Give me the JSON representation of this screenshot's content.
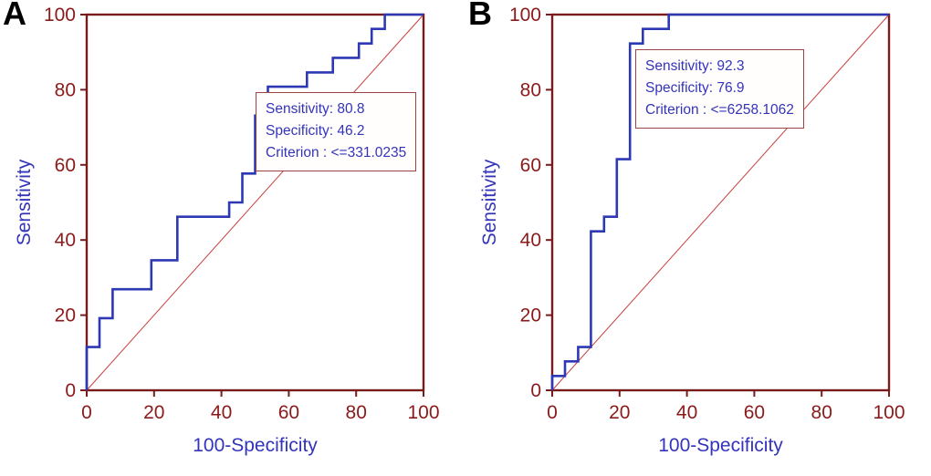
{
  "figure": {
    "background": "#ffffff"
  },
  "colors": {
    "curve": "#2d38b5",
    "diagonal": "#c84040",
    "frame": "#7a1b1b",
    "tick_label": "#8b1a1a",
    "axis_title": "#3434bb",
    "annotation_border": "#9c4343",
    "annotation_text": "#3434bb",
    "panel_label": "#000000"
  },
  "chart_data": [
    {
      "type": "line",
      "panel_label": "A",
      "title": "",
      "xlabel": "100-Specificity",
      "ylabel": "Sensitivity",
      "xlim": [
        0,
        100
      ],
      "ylim": [
        0,
        100
      ],
      "xticks": [
        0,
        20,
        40,
        60,
        80,
        100
      ],
      "yticks": [
        0,
        20,
        40,
        60,
        80,
        100
      ],
      "grid": false,
      "legend": "none",
      "series": [
        {
          "name": "ROC curve",
          "style": "step",
          "points": [
            [
              0,
              0
            ],
            [
              0,
              11.5
            ],
            [
              3.8,
              11.5
            ],
            [
              3.8,
              19.2
            ],
            [
              7.7,
              19.2
            ],
            [
              7.7,
              26.9
            ],
            [
              19.2,
              26.9
            ],
            [
              19.2,
              34.6
            ],
            [
              26.9,
              34.6
            ],
            [
              26.9,
              46.2
            ],
            [
              42.3,
              46.2
            ],
            [
              42.3,
              50
            ],
            [
              46.2,
              50
            ],
            [
              46.2,
              57.7
            ],
            [
              50,
              57.7
            ],
            [
              50,
              73.1
            ],
            [
              53.8,
              73.1
            ],
            [
              53.8,
              80.8
            ],
            [
              65.4,
              80.8
            ],
            [
              65.4,
              84.6
            ],
            [
              73.1,
              84.6
            ],
            [
              73.1,
              88.5
            ],
            [
              80.8,
              88.5
            ],
            [
              80.8,
              92.3
            ],
            [
              84.6,
              92.3
            ],
            [
              84.6,
              96.2
            ],
            [
              88.5,
              96.2
            ],
            [
              88.5,
              100
            ],
            [
              100,
              100
            ]
          ]
        },
        {
          "name": "Reference diagonal",
          "style": "straight",
          "points": [
            [
              0,
              0
            ],
            [
              100,
              100
            ]
          ]
        }
      ],
      "annotation": {
        "sensitivity": 80.8,
        "specificity": 46.2,
        "criterion": "<=331.0235",
        "lines": [
          "Sensitivity: 80.8",
          "Specificity: 46.2",
          "Criterion : <=331.0235"
        ]
      }
    },
    {
      "type": "line",
      "panel_label": "B",
      "title": "",
      "xlabel": "100-Specificity",
      "ylabel": "Sensitivity",
      "xlim": [
        0,
        100
      ],
      "ylim": [
        0,
        100
      ],
      "xticks": [
        0,
        20,
        40,
        60,
        80,
        100
      ],
      "yticks": [
        0,
        20,
        40,
        60,
        80,
        100
      ],
      "grid": false,
      "legend": "none",
      "series": [
        {
          "name": "ROC curve",
          "style": "step",
          "points": [
            [
              0,
              0
            ],
            [
              0,
              3.8
            ],
            [
              3.8,
              3.8
            ],
            [
              3.8,
              7.7
            ],
            [
              7.7,
              7.7
            ],
            [
              7.7,
              11.5
            ],
            [
              11.5,
              11.5
            ],
            [
              11.5,
              42.3
            ],
            [
              15.4,
              42.3
            ],
            [
              15.4,
              46.2
            ],
            [
              19.2,
              46.2
            ],
            [
              19.2,
              61.5
            ],
            [
              23.1,
              61.5
            ],
            [
              23.1,
              92.3
            ],
            [
              26.9,
              92.3
            ],
            [
              26.9,
              96.2
            ],
            [
              34.6,
              96.2
            ],
            [
              34.6,
              100
            ],
            [
              100,
              100
            ]
          ]
        },
        {
          "name": "Reference diagonal",
          "style": "straight",
          "points": [
            [
              0,
              0
            ],
            [
              100,
              100
            ]
          ]
        }
      ],
      "annotation": {
        "sensitivity": 92.3,
        "specificity": 76.9,
        "criterion": "<=6258.1062",
        "lines": [
          "Sensitivity: 92.3",
          "Specificity: 76.9",
          "Criterion : <=6258.1062"
        ]
      }
    }
  ]
}
